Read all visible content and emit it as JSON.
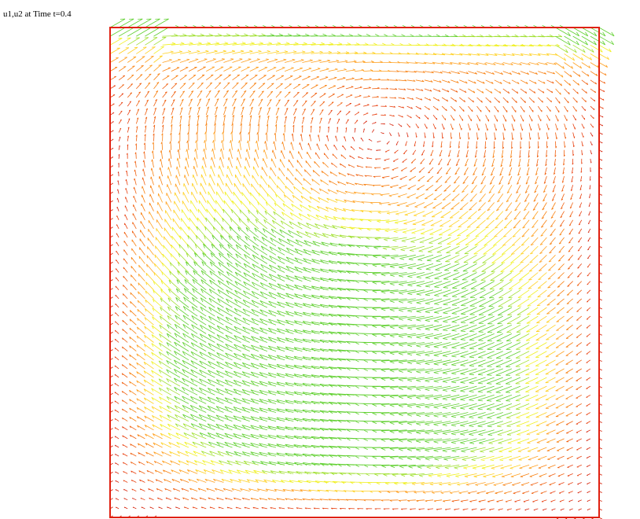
{
  "title": "u1,u2 at Time t=0.4"
}
